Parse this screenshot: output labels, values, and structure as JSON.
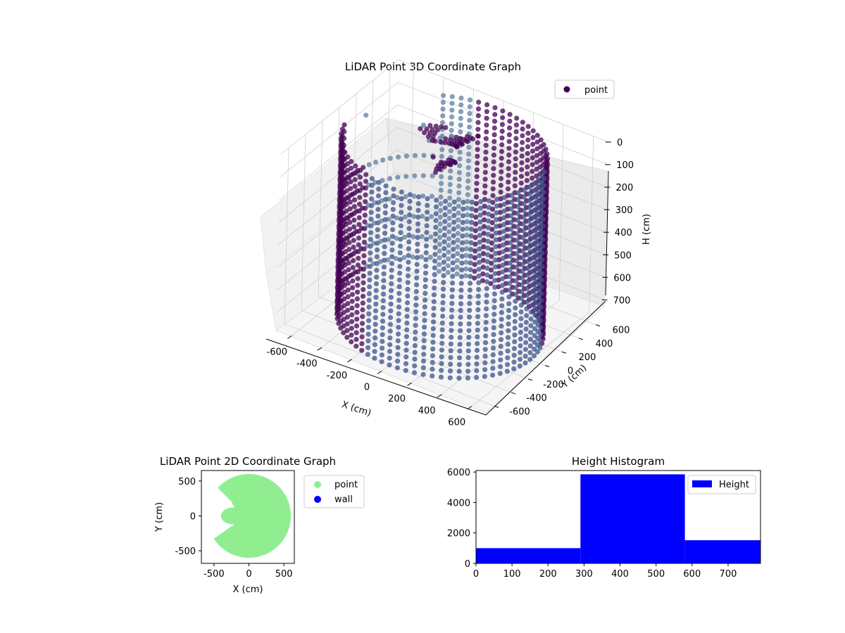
{
  "chart_data": [
    {
      "type": "scatter3d",
      "title": "LiDAR Point 3D Coordinate Graph",
      "xlabel": "X (cm)",
      "ylabel": "Y (cm)",
      "zlabel": "H (cm)",
      "xlim": [
        -700,
        700
      ],
      "ylim": [
        -700,
        700
      ],
      "zlim": [
        0,
        780
      ],
      "z_inverted": true,
      "xticks": [
        -600,
        -400,
        -200,
        0,
        200,
        400,
        600
      ],
      "yticks": [
        -600,
        -400,
        -200,
        0,
        200,
        400,
        600
      ],
      "zticks": [
        0,
        100,
        200,
        300,
        400,
        500,
        600,
        700
      ],
      "legend": {
        "entries": [
          "point"
        ],
        "placement": "top-right"
      },
      "colormap": "viridis",
      "colors": {
        "dark": "#440154",
        "mid": "#3b528b",
        "light": "#5f7fa0"
      },
      "grid": true,
      "series": [
        {
          "name": "point",
          "shape": "cylindrical wall of points",
          "radius": 600,
          "h_range": [
            0,
            780
          ],
          "floor_points_removed_sector": "left (x < -100)",
          "outliers": [
            {
              "x": -660,
              "y": 250,
              "h": 100
            },
            {
              "x": -680,
              "y": 200,
              "h": 350
            }
          ]
        }
      ]
    },
    {
      "type": "scatter",
      "title": "LiDAR Point 2D Coordinate Graph",
      "xlabel": "X (cm)",
      "ylabel": "Y (cm)",
      "xlim": [
        -680,
        650
      ],
      "ylim": [
        -680,
        650
      ],
      "xticks": [
        -500,
        0,
        500
      ],
      "yticks": [
        -500,
        0,
        500
      ],
      "legend": {
        "entries": [
          "point",
          "wall"
        ],
        "placement": "outside-right"
      },
      "series": [
        {
          "name": "point",
          "color": "#90ee90",
          "shape": "disk of radius 600 with a notch on the left side"
        },
        {
          "name": "wall",
          "color": "#0000ff"
        }
      ]
    },
    {
      "type": "bar",
      "title": "Height Histogram",
      "xlabel": "",
      "ylabel": "",
      "xlim": [
        0,
        790
      ],
      "ylim": [
        0,
        6100
      ],
      "xticks": [
        0,
        100,
        200,
        300,
        400,
        500,
        600,
        700
      ],
      "yticks": [
        0,
        2000,
        4000,
        6000
      ],
      "legend": {
        "entries": [
          "Height"
        ],
        "placement": "top-right"
      },
      "color": "#0000ff",
      "series": [
        {
          "name": "Height",
          "bins": [
            {
              "start": 0,
              "end": 290,
              "count": 1000
            },
            {
              "start": 290,
              "end": 580,
              "count": 5850
            },
            {
              "start": 580,
              "end": 790,
              "count": 1520
            }
          ]
        }
      ]
    }
  ]
}
